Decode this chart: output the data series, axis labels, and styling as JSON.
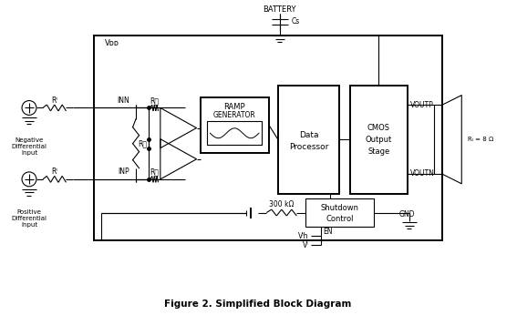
{
  "title": "Figure 2. Simplified Block Diagram",
  "bg_color": "#ffffff",
  "fig_width": 5.67,
  "fig_height": 3.57,
  "dpi": 100,
  "battery_label": "BATTERY",
  "cs_label": "Cs",
  "vdd_label": "Vᴅᴅ",
  "inn_label": "INN",
  "inp_label": "INP",
  "ri_label": "Rᴵ",
  "rf_label": "R႔",
  "ramp_label1": "RAMP",
  "ramp_label2": "GENERATOR",
  "data_proc_label1": "Data",
  "data_proc_label2": "Processor",
  "cmos_label1": "CMOS",
  "cmos_label2": "Output",
  "cmos_label3": "Stage",
  "voutp_label": "VOUTP",
  "voutn_label": "VOUTN",
  "rl_label": "Rₗ = 8 Ω",
  "shutdown_label1": "Shutdown",
  "shutdown_label2": "Control",
  "gnd_label": "GND",
  "en_label": "EN",
  "vih_label": "Vᴵh",
  "vi_label": "Vᴵ",
  "r300k_label": "300 kΩ",
  "neg_diff_label": "Negative\nDifferential\nInput",
  "pos_diff_label": "Positive\nDifferential\nInput"
}
